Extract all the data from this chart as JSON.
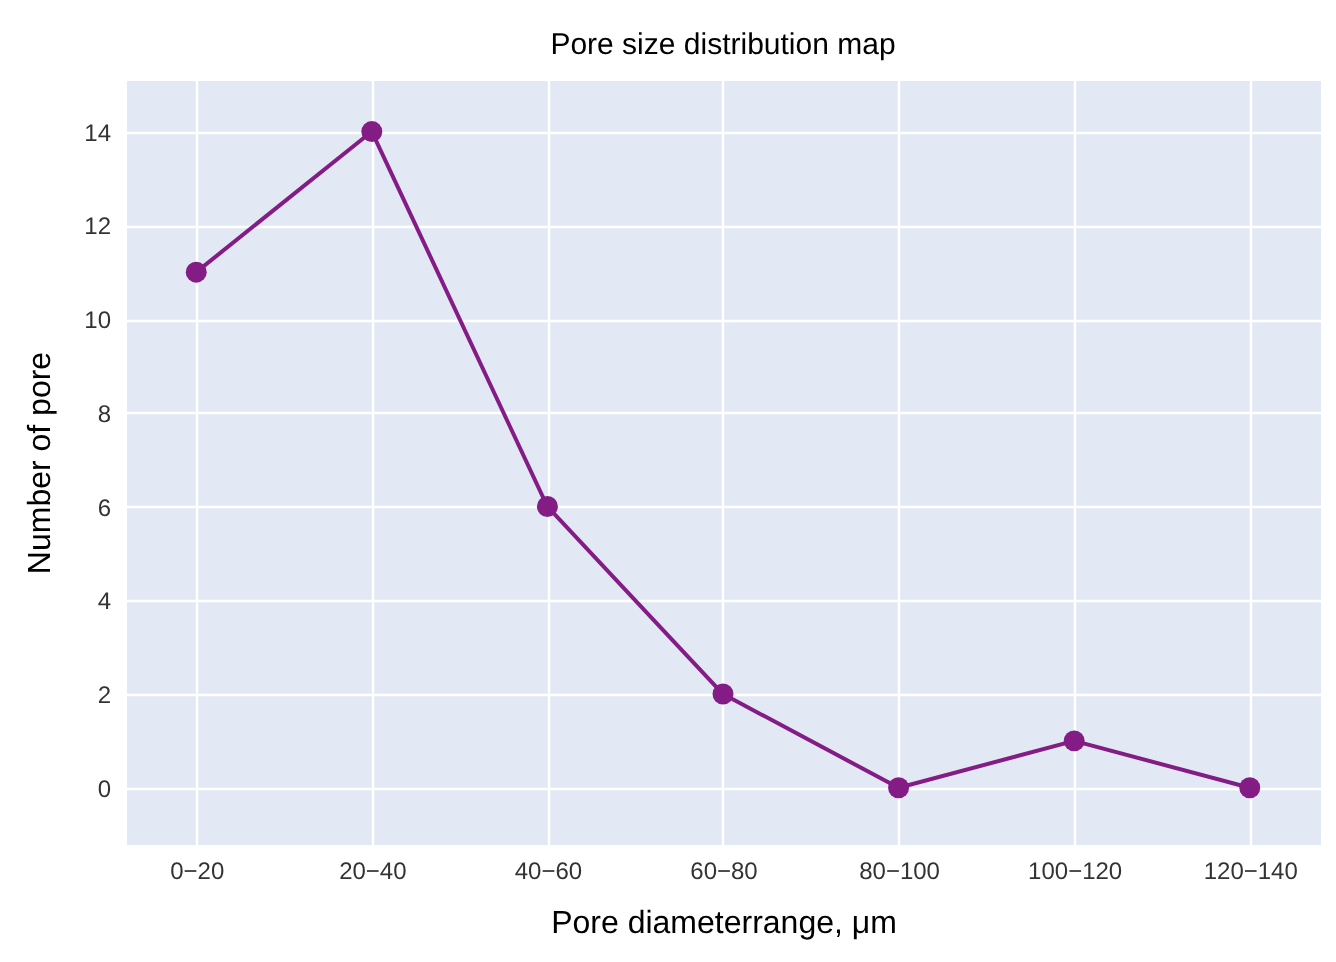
{
  "chart_data": {
    "type": "line",
    "title": "Pore size distribution map",
    "xlabel": "Pore diameterrange, μm",
    "ylabel": "Number of pore",
    "categories": [
      "0−20",
      "20−40",
      "40−60",
      "60−80",
      "80−100",
      "100−120",
      "120−140"
    ],
    "series": [
      {
        "color": "#841c86",
        "values": [
          11,
          14,
          6,
          2,
          0,
          1,
          0
        ]
      }
    ],
    "ylim": [
      -1.2,
      15.1
    ],
    "yticks": [
      0,
      2,
      4,
      6,
      8,
      10,
      12,
      14
    ],
    "grid": true,
    "marker": "circle",
    "line_style": "solid"
  }
}
